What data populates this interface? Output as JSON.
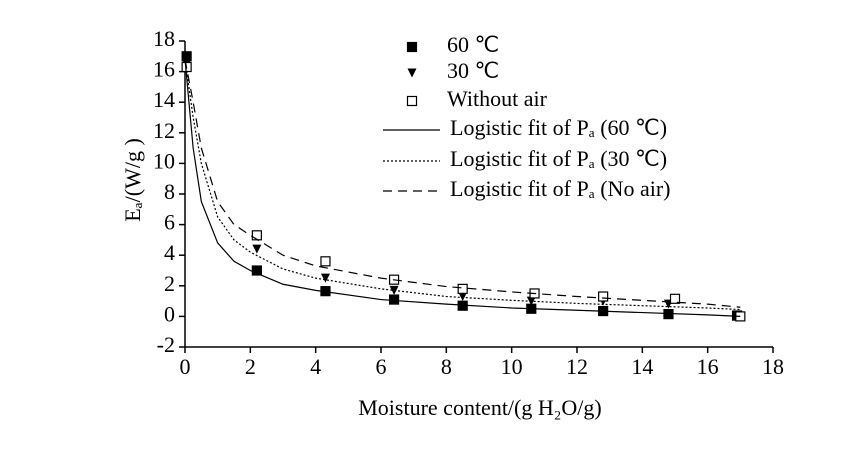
{
  "chart_data": {
    "type": "scatter",
    "x_label": "Moisture content/(g H₂O/g)",
    "y_label": "Eₐ/(W/g )",
    "xlim": [
      0,
      18
    ],
    "xticks": [
      0,
      2,
      4,
      6,
      8,
      10,
      12,
      14,
      16,
      18
    ],
    "ylim": [
      -2,
      18
    ],
    "yticks": [
      -2,
      0,
      2,
      4,
      6,
      8,
      10,
      12,
      14,
      16,
      18
    ],
    "legend": "upper right",
    "series": [
      {
        "name": "60 ℃",
        "style": "square",
        "color": "#000000",
        "x": [
          0.05,
          2.2,
          4.3,
          6.4,
          8.5,
          10.6,
          12.8,
          14.8,
          16.9
        ],
        "values": [
          17.0,
          3.0,
          1.65,
          1.1,
          0.7,
          0.5,
          0.35,
          0.15,
          0.05
        ]
      },
      {
        "name": "30 ℃",
        "style": "triangle",
        "color": "#000000",
        "x": [
          0.05,
          2.2,
          4.3,
          6.4,
          8.5,
          10.6,
          12.8,
          14.8,
          16.9
        ],
        "values": [
          16.5,
          4.4,
          2.5,
          1.7,
          1.3,
          1.0,
          1.0,
          0.8,
          0.1
        ]
      },
      {
        "name": "Without air",
        "style": "open-square",
        "color": "#000000",
        "x": [
          0.05,
          2.2,
          4.3,
          6.4,
          8.5,
          10.7,
          12.8,
          15.0,
          17.0
        ],
        "values": [
          16.3,
          5.3,
          3.6,
          2.4,
          1.8,
          1.5,
          1.3,
          1.15,
          0.0
        ]
      },
      {
        "name": "Logistic fit of Pₐ (60 ℃)",
        "style": "solid",
        "color": "#000000",
        "x": [
          0,
          0.25,
          0.5,
          1,
          1.5,
          2,
          3,
          4,
          6,
          8,
          10,
          12,
          14,
          16,
          17
        ],
        "values": [
          16.8,
          11,
          7.5,
          4.8,
          3.6,
          3.0,
          2.1,
          1.7,
          1.1,
          0.8,
          0.55,
          0.4,
          0.25,
          0.1,
          0.0
        ]
      },
      {
        "name": "Logistic fit of Pₐ (30 ℃)",
        "style": "dotted",
        "color": "#000000",
        "x": [
          0,
          0.25,
          0.5,
          1,
          1.5,
          2,
          3,
          4,
          6,
          8,
          10,
          12,
          14,
          16,
          17
        ],
        "values": [
          16.8,
          13,
          10,
          6.5,
          5.0,
          4.2,
          3.1,
          2.5,
          1.8,
          1.3,
          1.05,
          0.85,
          0.7,
          0.55,
          0.45
        ]
      },
      {
        "name": "Logistic fit of Pₐ (No air)",
        "style": "dashed",
        "color": "#000000",
        "x": [
          0,
          0.25,
          0.5,
          1,
          1.5,
          2,
          3,
          4,
          6,
          8,
          10,
          12,
          14,
          16,
          17
        ],
        "values": [
          16.8,
          14,
          11,
          7.5,
          6.0,
          5.3,
          4.0,
          3.3,
          2.5,
          1.95,
          1.6,
          1.3,
          1.05,
          0.8,
          0.6
        ]
      }
    ]
  }
}
